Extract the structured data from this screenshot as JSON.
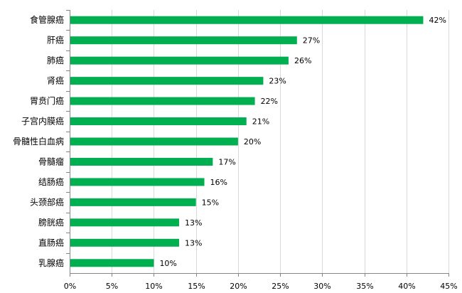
{
  "chart_data": {
    "type": "bar",
    "orientation": "horizontal",
    "categories": [
      "食管腺癌",
      "肝癌",
      "肺癌",
      "肾癌",
      "胃贲门癌",
      "子宫内膜癌",
      "骨髓性白血病",
      "骨髓瘤",
      "结肠癌",
      "头颈部癌",
      "膀胱癌",
      "直肠癌",
      "乳腺癌"
    ],
    "values": [
      42,
      27,
      26,
      23,
      22,
      21,
      20,
      17,
      16,
      15,
      13,
      13,
      10
    ],
    "value_labels": [
      "42%",
      "27%",
      "26%",
      "23%",
      "22%",
      "21%",
      "20%",
      "17%",
      "16%",
      "15%",
      "13%",
      "13%",
      "10%"
    ],
    "x_ticks": [
      "0%",
      "5%",
      "10%",
      "15%",
      "20%",
      "25%",
      "30%",
      "35%",
      "40%",
      "45%"
    ],
    "xlim": [
      0,
      45
    ],
    "x_tick_step": 5,
    "grid": "vertical",
    "bar_color": "#00b050",
    "grid_color": "#d9d9d9",
    "axis_color": "#868686"
  }
}
